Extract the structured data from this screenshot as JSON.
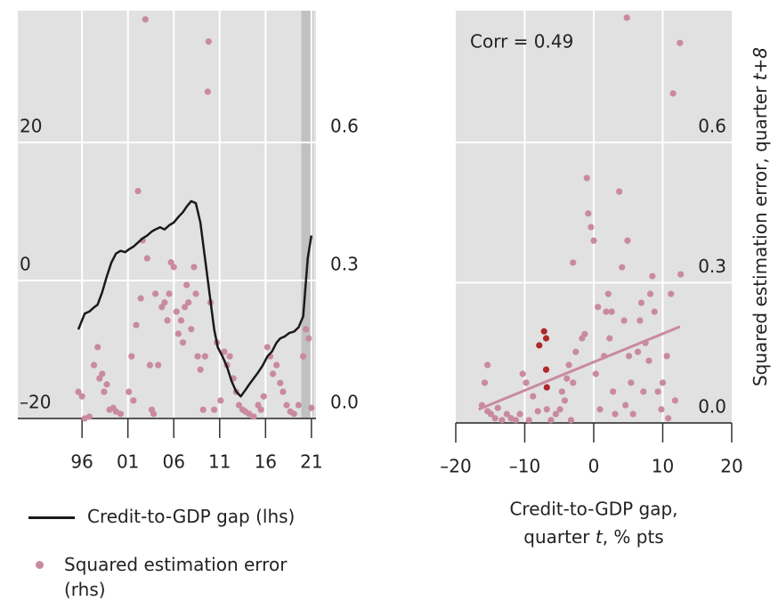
{
  "chart_data": [
    {
      "type": "combo",
      "xlim": [
        1989,
        2021.5
      ],
      "xticks": [
        {
          "value": 1996,
          "label": "96"
        },
        {
          "value": 2001,
          "label": "01"
        },
        {
          "value": 2006,
          "label": "06"
        },
        {
          "value": 2011,
          "label": "11"
        },
        {
          "value": 2016,
          "label": "16"
        },
        {
          "value": 2021,
          "label": "21"
        }
      ],
      "ylim": [
        -20,
        39.1
      ],
      "yticks": [
        {
          "value": -20,
          "label": "–20"
        },
        0,
        20
      ],
      "y2lim": [
        0,
        0.886
      ],
      "y2ticks": [
        {
          "value": 0,
          "label": "0.0"
        },
        0.3,
        0.6
      ],
      "grid": true,
      "highlight_span": [
        2019.9,
        2021.2
      ],
      "series": [
        {
          "name": "Credit-to-GDP gap (lhs)",
          "type": "line",
          "color": "#1a1a1a",
          "x": [
            1995.6,
            1996.3,
            1996.8,
            1997.3,
            1997.7,
            1998.2,
            1998.7,
            1999.2,
            1999.7,
            2000.2,
            2000.7,
            2001.1,
            2001.6,
            2002.1,
            2002.6,
            2003.1,
            2003.6,
            2004.0,
            2004.5,
            2005.0,
            2005.5,
            2006.0,
            2006.5,
            2007.0,
            2007.4,
            2007.9,
            2008.4,
            2008.9,
            2009.4,
            2009.9,
            2010.4,
            2010.8,
            2011.3,
            2011.8,
            2012.3,
            2012.8,
            2013.3,
            2013.8,
            2014.2,
            2014.7,
            2015.2,
            2015.7,
            2016.2,
            2016.7,
            2017.2,
            2017.6,
            2018.1,
            2018.6,
            2019.1,
            2019.6,
            2020.1,
            2020.6,
            2021.0
          ],
          "values": [
            -7.1,
            -4.8,
            -4.5,
            -3.9,
            -3.5,
            -1.7,
            0.6,
            2.6,
            3.9,
            4.3,
            4.1,
            4.5,
            4.9,
            5.5,
            6.1,
            6.5,
            7.1,
            7.4,
            7.7,
            7.4,
            8.0,
            8.4,
            9.2,
            9.9,
            10.7,
            11.5,
            11.2,
            8.4,
            3.2,
            -1.9,
            -7.1,
            -9.7,
            -11.0,
            -12.5,
            -14.6,
            -16.1,
            -16.8,
            -15.9,
            -15.1,
            -14.2,
            -13.3,
            -12.3,
            -11.0,
            -10.3,
            -9.0,
            -8.4,
            -8.1,
            -7.6,
            -7.4,
            -6.8,
            -5.2,
            3.2,
            6.5
          ]
        },
        {
          "name": "Squared estimation error (rhs)",
          "type": "scatter",
          "axis": "y2",
          "color": "#c98a9f",
          "x": [
            1995.6,
            1996.0,
            1996.3,
            1996.8,
            1997.3,
            1997.7,
            1997.9,
            1998.2,
            1998.4,
            1998.7,
            1999.0,
            1999.4,
            1999.7,
            2000.2,
            2001.1,
            2001.4,
            2001.6,
            2001.9,
            2002.1,
            2002.4,
            2002.6,
            2002.9,
            2003.1,
            2003.4,
            2003.6,
            2003.8,
            2004.0,
            2004.3,
            2004.7,
            2005.0,
            2005.3,
            2005.5,
            2005.7,
            2006.0,
            2006.3,
            2006.5,
            2006.8,
            2007.0,
            2007.2,
            2007.4,
            2007.6,
            2007.9,
            2008.2,
            2008.4,
            2008.6,
            2008.9,
            2009.2,
            2009.4,
            2009.7,
            2009.8,
            2010.0,
            2010.4,
            2010.7,
            2011.1,
            2011.5,
            2011.8,
            2012.1,
            2012.5,
            2012.8,
            2013.1,
            2013.5,
            2013.8,
            2014.2,
            2014.7,
            2015.2,
            2015.5,
            2015.8,
            2016.2,
            2016.5,
            2016.8,
            2017.2,
            2017.6,
            2017.9,
            2018.3,
            2018.7,
            2019.1,
            2019.6,
            2020.1,
            2020.4,
            2020.7,
            2021.0
          ],
          "values": [
            0.058,
            0.048,
            0.0,
            0.004,
            0.116,
            0.155,
            0.087,
            0.097,
            0.058,
            0.074,
            0.019,
            0.023,
            0.015,
            0.01,
            0.058,
            0.135,
            0.039,
            0.203,
            0.494,
            0.261,
            0.387,
            0.867,
            0.348,
            0.116,
            0.019,
            0.01,
            0.271,
            0.116,
            0.242,
            0.252,
            0.213,
            0.271,
            0.339,
            0.329,
            0.232,
            0.184,
            0.213,
            0.165,
            0.242,
            0.29,
            0.252,
            0.194,
            0.329,
            0.271,
            0.135,
            0.106,
            0.019,
            0.135,
            0.71,
            0.819,
            0.252,
            0.019,
            0.165,
            0.039,
            0.145,
            0.116,
            0.135,
            0.087,
            0.058,
            0.029,
            0.019,
            0.015,
            0.01,
            0.004,
            0.029,
            0.019,
            0.048,
            0.155,
            0.135,
            0.097,
            0.116,
            0.077,
            0.058,
            0.029,
            0.015,
            0.01,
            0.029,
            0.135,
            0.194,
            0.174,
            0.023
          ]
        }
      ]
    },
    {
      "type": "scatter",
      "annotation": "Corr = 0.49",
      "x_label": [
        "Credit-to-GDP gap,",
        "quarter ",
        "t",
        ", % pts"
      ],
      "y_label": [
        "Squared estimation error, quarter ",
        "t+8"
      ],
      "xlim": [
        -20,
        20
      ],
      "xticks": [
        {
          "value": -20,
          "label": "–20"
        },
        {
          "value": -10,
          "label": "–10"
        },
        0,
        10,
        20
      ],
      "ylim": [
        0,
        0.882
      ],
      "yticks": [
        {
          "value": 0,
          "label": "0.0"
        },
        0.3,
        0.6
      ],
      "grid": true,
      "series": [
        {
          "color": "#c98a9f",
          "x": [
            -15.4,
            -15.8,
            -16.2,
            -15.4,
            -14.9,
            -14.3,
            -13.9,
            -13.3,
            -12.6,
            -12.0,
            -11.3,
            -10.7,
            -10.3,
            -9.8,
            -9.4,
            -8.8,
            -8.1,
            -6.8,
            -6.2,
            -5.5,
            -4.9,
            -4.6,
            -4.2,
            -3.9,
            -3.6,
            -3.3,
            -3.0,
            -3.0,
            -2.6,
            -1.7,
            -1.3,
            -1.0,
            -0.8,
            -0.4,
            0.0,
            0.3,
            0.6,
            0.9,
            1.5,
            1.8,
            2.1,
            2.3,
            2.6,
            2.8,
            3.1,
            3.7,
            4.1,
            4.4,
            4.6,
            4.8,
            4.9,
            5.1,
            5.4,
            5.7,
            6.4,
            6.7,
            6.9,
            7.2,
            7.5,
            8.0,
            8.2,
            8.5,
            8.8,
            9.3,
            9.8,
            10.0,
            10.6,
            10.8,
            11.5,
            12.5,
            12.6,
            11.2,
            11.8
          ],
          "values": [
            0.124,
            0.086,
            0.038,
            0.025,
            0.019,
            0.01,
            0.032,
            0.006,
            0.019,
            0.01,
            0.006,
            0.019,
            0.105,
            0.086,
            0.006,
            0.057,
            0.025,
            0.029,
            0.006,
            0.019,
            0.029,
            0.067,
            0.048,
            0.095,
            0.124,
            0.006,
            0.343,
            0.086,
            0.152,
            0.181,
            0.19,
            0.524,
            0.448,
            0.419,
            0.39,
            0.105,
            0.248,
            0.029,
            0.143,
            0.238,
            0.276,
            0.181,
            0.238,
            0.067,
            0.019,
            0.495,
            0.333,
            0.219,
            0.038,
            0.867,
            0.39,
            0.143,
            0.086,
            0.019,
            0.152,
            0.219,
            0.257,
            0.067,
            0.171,
            0.133,
            0.276,
            0.314,
            0.238,
            0.067,
            0.029,
            0.086,
            0.143,
            0.01,
            0.705,
            0.813,
            0.318,
            0.276,
            0.048
          ]
        },
        {
          "color": "#b0282a",
          "x": [
            -7.9,
            -7.2,
            -6.9,
            -6.9,
            -6.8
          ],
          "values": [
            0.166,
            0.196,
            0.181,
            0.114,
            0.076
          ]
        }
      ],
      "trend_line": {
        "color": "#c98a9f",
        "x": [
          -16.7,
          12.5
        ],
        "values": [
          0.029,
          0.206
        ]
      }
    }
  ]
}
